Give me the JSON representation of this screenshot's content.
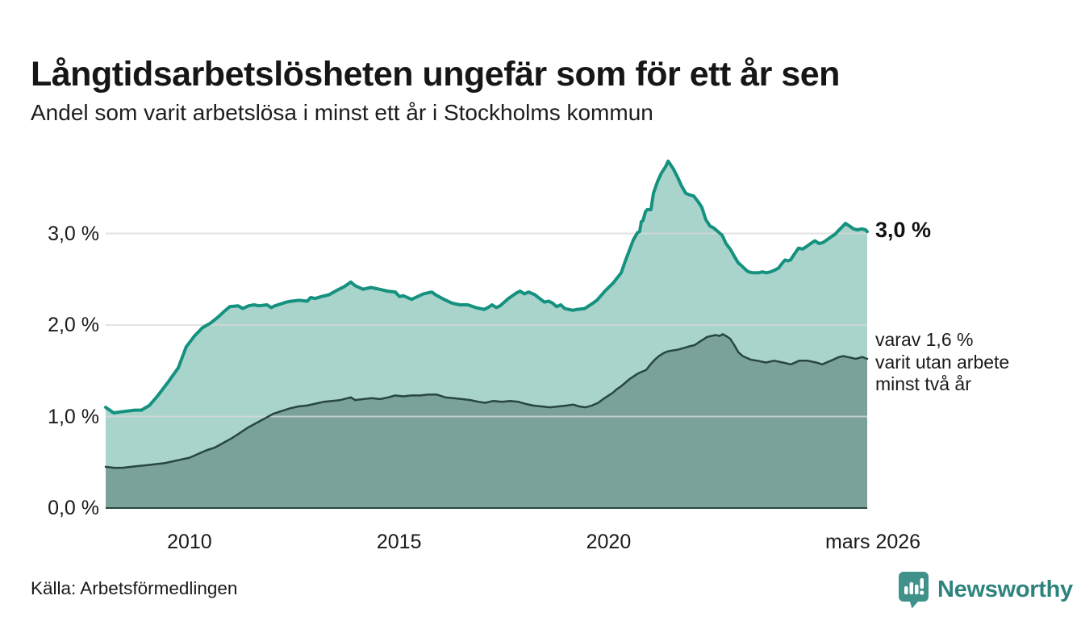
{
  "header": {
    "title": "Långtidsarbetslösheten ungefär som för ett år sen",
    "subtitle": "Andel som varit arbetslösa i minst ett år i Stockholms kommun"
  },
  "footer": {
    "source": "Källa: Arbetsförmedlingen",
    "brand": "Newsworthy"
  },
  "colors": {
    "line_teal": "#14917f",
    "fill_light_teal": "#a9d4cc",
    "fill_dark_teal": "#7aa29b",
    "line_dark": "#274740",
    "gridline": "#d9d9d9",
    "text": "#1a1a1a",
    "brand_teal": "#2e837d",
    "brand_icon_teal": "#3f918a"
  },
  "chart_data": {
    "type": "area",
    "title": "Långtidsarbetslösheten ungefär som för ett år sen",
    "subtitle": "Andel som varit arbetslösa i minst ett år i Stockholms kommun",
    "unit": "%",
    "grid": true,
    "legend_position": "end-of-line-labels",
    "x_axis": {
      "range": [
        2008,
        2026.17
      ],
      "ticks": [
        {
          "x": 2010,
          "label": "2010"
        },
        {
          "x": 2015,
          "label": "2015"
        },
        {
          "x": 2020,
          "label": "2020"
        },
        {
          "x": 2026.17,
          "label": "mars 2026"
        }
      ]
    },
    "y_axis": {
      "range": [
        0,
        3.9
      ],
      "ticks": [
        {
          "value": 0,
          "label": "0,0 %"
        },
        {
          "value": 1,
          "label": "1,0 %"
        },
        {
          "value": 2,
          "label": "2,0 %"
        },
        {
          "value": 3,
          "label": "3,0 %"
        }
      ]
    },
    "series": [
      {
        "name": "arbetslösa minst ett år",
        "end_value": 3.0,
        "end_label": "3,0 %",
        "color": "#14917f",
        "fill": "#a9d4cc",
        "points": [
          [
            2008.0,
            1.1
          ],
          [
            2008.19,
            1.04
          ],
          [
            2008.35,
            1.05
          ],
          [
            2008.52,
            1.06
          ],
          [
            2008.7,
            1.07
          ],
          [
            2008.85,
            1.07
          ],
          [
            2009.04,
            1.12
          ],
          [
            2009.23,
            1.22
          ],
          [
            2009.48,
            1.37
          ],
          [
            2009.73,
            1.53
          ],
          [
            2009.92,
            1.76
          ],
          [
            2010.12,
            1.88
          ],
          [
            2010.31,
            1.97
          ],
          [
            2010.5,
            2.02
          ],
          [
            2010.69,
            2.09
          ],
          [
            2010.83,
            2.15
          ],
          [
            2010.96,
            2.2
          ],
          [
            2011.16,
            2.21
          ],
          [
            2011.27,
            2.18
          ],
          [
            2011.41,
            2.21
          ],
          [
            2011.54,
            2.22
          ],
          [
            2011.66,
            2.21
          ],
          [
            2011.85,
            2.22
          ],
          [
            2011.95,
            2.19
          ],
          [
            2012.04,
            2.21
          ],
          [
            2012.31,
            2.25
          ],
          [
            2012.43,
            2.26
          ],
          [
            2012.62,
            2.27
          ],
          [
            2012.81,
            2.26
          ],
          [
            2012.89,
            2.3
          ],
          [
            2013.0,
            2.29
          ],
          [
            2013.14,
            2.31
          ],
          [
            2013.33,
            2.33
          ],
          [
            2013.52,
            2.38
          ],
          [
            2013.7,
            2.42
          ],
          [
            2013.85,
            2.47
          ],
          [
            2013.95,
            2.43
          ],
          [
            2014.14,
            2.39
          ],
          [
            2014.33,
            2.41
          ],
          [
            2014.53,
            2.39
          ],
          [
            2014.72,
            2.37
          ],
          [
            2014.91,
            2.36
          ],
          [
            2015.01,
            2.31
          ],
          [
            2015.1,
            2.32
          ],
          [
            2015.3,
            2.28
          ],
          [
            2015.39,
            2.3
          ],
          [
            2015.58,
            2.34
          ],
          [
            2015.78,
            2.36
          ],
          [
            2015.87,
            2.33
          ],
          [
            2016.07,
            2.28
          ],
          [
            2016.26,
            2.24
          ],
          [
            2016.45,
            2.22
          ],
          [
            2016.64,
            2.22
          ],
          [
            2016.83,
            2.19
          ],
          [
            2017.03,
            2.17
          ],
          [
            2017.12,
            2.19
          ],
          [
            2017.22,
            2.22
          ],
          [
            2017.32,
            2.19
          ],
          [
            2017.41,
            2.21
          ],
          [
            2017.61,
            2.29
          ],
          [
            2017.8,
            2.35
          ],
          [
            2017.89,
            2.37
          ],
          [
            2017.99,
            2.34
          ],
          [
            2018.09,
            2.36
          ],
          [
            2018.24,
            2.33
          ],
          [
            2018.38,
            2.28
          ],
          [
            2018.47,
            2.25
          ],
          [
            2018.57,
            2.26
          ],
          [
            2018.66,
            2.24
          ],
          [
            2018.76,
            2.2
          ],
          [
            2018.86,
            2.22
          ],
          [
            2018.95,
            2.18
          ],
          [
            2019.05,
            2.17
          ],
          [
            2019.15,
            2.16
          ],
          [
            2019.24,
            2.17
          ],
          [
            2019.43,
            2.18
          ],
          [
            2019.53,
            2.21
          ],
          [
            2019.63,
            2.24
          ],
          [
            2019.72,
            2.27
          ],
          [
            2019.91,
            2.37
          ],
          [
            2020.11,
            2.46
          ],
          [
            2020.3,
            2.57
          ],
          [
            2020.4,
            2.7
          ],
          [
            2020.49,
            2.81
          ],
          [
            2020.59,
            2.93
          ],
          [
            2020.69,
            3.01
          ],
          [
            2020.74,
            3.02
          ],
          [
            2020.78,
            3.13
          ],
          [
            2020.82,
            3.14
          ],
          [
            2020.88,
            3.24
          ],
          [
            2020.92,
            3.26
          ],
          [
            2021.01,
            3.26
          ],
          [
            2021.07,
            3.44
          ],
          [
            2021.17,
            3.57
          ],
          [
            2021.26,
            3.66
          ],
          [
            2021.36,
            3.73
          ],
          [
            2021.42,
            3.79
          ],
          [
            2021.45,
            3.77
          ],
          [
            2021.55,
            3.7
          ],
          [
            2021.65,
            3.61
          ],
          [
            2021.74,
            3.52
          ],
          [
            2021.84,
            3.44
          ],
          [
            2021.94,
            3.42
          ],
          [
            2022.03,
            3.41
          ],
          [
            2022.13,
            3.35
          ],
          [
            2022.22,
            3.29
          ],
          [
            2022.32,
            3.15
          ],
          [
            2022.42,
            3.08
          ],
          [
            2022.51,
            3.06
          ],
          [
            2022.61,
            3.02
          ],
          [
            2022.71,
            2.98
          ],
          [
            2022.8,
            2.89
          ],
          [
            2022.9,
            2.83
          ],
          [
            2023.0,
            2.75
          ],
          [
            2023.09,
            2.68
          ],
          [
            2023.19,
            2.64
          ],
          [
            2023.28,
            2.6
          ],
          [
            2023.34,
            2.58
          ],
          [
            2023.44,
            2.57
          ],
          [
            2023.57,
            2.57
          ],
          [
            2023.67,
            2.58
          ],
          [
            2023.76,
            2.57
          ],
          [
            2023.86,
            2.58
          ],
          [
            2023.96,
            2.6
          ],
          [
            2024.05,
            2.62
          ],
          [
            2024.15,
            2.68
          ],
          [
            2024.21,
            2.71
          ],
          [
            2024.28,
            2.7
          ],
          [
            2024.34,
            2.71
          ],
          [
            2024.44,
            2.78
          ],
          [
            2024.53,
            2.84
          ],
          [
            2024.63,
            2.83
          ],
          [
            2024.73,
            2.86
          ],
          [
            2024.82,
            2.89
          ],
          [
            2024.92,
            2.92
          ],
          [
            2025.02,
            2.89
          ],
          [
            2025.11,
            2.9
          ],
          [
            2025.21,
            2.93
          ],
          [
            2025.3,
            2.96
          ],
          [
            2025.4,
            2.99
          ],
          [
            2025.5,
            3.04
          ],
          [
            2025.59,
            3.08
          ],
          [
            2025.65,
            3.11
          ],
          [
            2025.75,
            3.08
          ],
          [
            2025.84,
            3.05
          ],
          [
            2025.94,
            3.04
          ],
          [
            2026.04,
            3.05
          ],
          [
            2026.13,
            3.04
          ],
          [
            2026.17,
            3.02
          ]
        ]
      },
      {
        "name": "varav utan arbete minst två år",
        "end_value": 1.6,
        "end_label_lines": [
          "varav 1,6 %",
          "varit utan arbete",
          "minst två år"
        ],
        "color": "#274740",
        "fill": "#7aa29b",
        "points": [
          [
            2008.0,
            0.45
          ],
          [
            2008.2,
            0.44
          ],
          [
            2008.4,
            0.44
          ],
          [
            2008.6,
            0.45
          ],
          [
            2008.8,
            0.46
          ],
          [
            2009.0,
            0.47
          ],
          [
            2009.2,
            0.48
          ],
          [
            2009.4,
            0.49
          ],
          [
            2009.6,
            0.51
          ],
          [
            2009.8,
            0.53
          ],
          [
            2010.0,
            0.55
          ],
          [
            2010.2,
            0.59
          ],
          [
            2010.4,
            0.63
          ],
          [
            2010.6,
            0.66
          ],
          [
            2010.8,
            0.71
          ],
          [
            2011.0,
            0.76
          ],
          [
            2011.2,
            0.82
          ],
          [
            2011.4,
            0.88
          ],
          [
            2011.6,
            0.93
          ],
          [
            2011.8,
            0.98
          ],
          [
            2012.0,
            1.03
          ],
          [
            2012.2,
            1.06
          ],
          [
            2012.4,
            1.09
          ],
          [
            2012.6,
            1.11
          ],
          [
            2012.8,
            1.12
          ],
          [
            2013.0,
            1.14
          ],
          [
            2013.2,
            1.16
          ],
          [
            2013.4,
            1.17
          ],
          [
            2013.6,
            1.18
          ],
          [
            2013.85,
            1.21
          ],
          [
            2013.95,
            1.18
          ],
          [
            2014.15,
            1.19
          ],
          [
            2014.35,
            1.2
          ],
          [
            2014.55,
            1.19
          ],
          [
            2014.75,
            1.21
          ],
          [
            2014.9,
            1.23
          ],
          [
            2015.1,
            1.22
          ],
          [
            2015.3,
            1.23
          ],
          [
            2015.5,
            1.23
          ],
          [
            2015.7,
            1.24
          ],
          [
            2015.9,
            1.24
          ],
          [
            2016.1,
            1.21
          ],
          [
            2016.3,
            1.2
          ],
          [
            2016.5,
            1.19
          ],
          [
            2016.7,
            1.18
          ],
          [
            2016.9,
            1.16
          ],
          [
            2017.05,
            1.15
          ],
          [
            2017.25,
            1.17
          ],
          [
            2017.45,
            1.16
          ],
          [
            2017.65,
            1.17
          ],
          [
            2017.85,
            1.16
          ],
          [
            2018.0,
            1.14
          ],
          [
            2018.2,
            1.12
          ],
          [
            2018.4,
            1.11
          ],
          [
            2018.6,
            1.1
          ],
          [
            2018.8,
            1.11
          ],
          [
            2019.0,
            1.12
          ],
          [
            2019.15,
            1.13
          ],
          [
            2019.3,
            1.11
          ],
          [
            2019.45,
            1.1
          ],
          [
            2019.6,
            1.12
          ],
          [
            2019.75,
            1.15
          ],
          [
            2019.9,
            1.2
          ],
          [
            2020.0,
            1.23
          ],
          [
            2020.1,
            1.26
          ],
          [
            2020.2,
            1.3
          ],
          [
            2020.3,
            1.33
          ],
          [
            2020.4,
            1.37
          ],
          [
            2020.5,
            1.41
          ],
          [
            2020.6,
            1.44
          ],
          [
            2020.7,
            1.47
          ],
          [
            2020.8,
            1.49
          ],
          [
            2020.9,
            1.51
          ],
          [
            2021.0,
            1.57
          ],
          [
            2021.1,
            1.62
          ],
          [
            2021.2,
            1.66
          ],
          [
            2021.3,
            1.69
          ],
          [
            2021.4,
            1.71
          ],
          [
            2021.5,
            1.72
          ],
          [
            2021.65,
            1.73
          ],
          [
            2021.8,
            1.75
          ],
          [
            2021.95,
            1.77
          ],
          [
            2022.05,
            1.78
          ],
          [
            2022.15,
            1.81
          ],
          [
            2022.25,
            1.84
          ],
          [
            2022.35,
            1.87
          ],
          [
            2022.45,
            1.88
          ],
          [
            2022.55,
            1.89
          ],
          [
            2022.65,
            1.88
          ],
          [
            2022.72,
            1.9
          ],
          [
            2022.8,
            1.88
          ],
          [
            2022.9,
            1.85
          ],
          [
            2023.0,
            1.78
          ],
          [
            2023.1,
            1.7
          ],
          [
            2023.2,
            1.66
          ],
          [
            2023.3,
            1.64
          ],
          [
            2023.4,
            1.62
          ],
          [
            2023.55,
            1.61
          ],
          [
            2023.75,
            1.59
          ],
          [
            2023.95,
            1.61
          ],
          [
            2024.15,
            1.59
          ],
          [
            2024.35,
            1.57
          ],
          [
            2024.55,
            1.61
          ],
          [
            2024.75,
            1.61
          ],
          [
            2024.95,
            1.59
          ],
          [
            2025.1,
            1.57
          ],
          [
            2025.3,
            1.61
          ],
          [
            2025.5,
            1.65
          ],
          [
            2025.6,
            1.66
          ],
          [
            2025.7,
            1.65
          ],
          [
            2025.9,
            1.63
          ],
          [
            2026.05,
            1.65
          ],
          [
            2026.17,
            1.63
          ]
        ]
      }
    ]
  }
}
